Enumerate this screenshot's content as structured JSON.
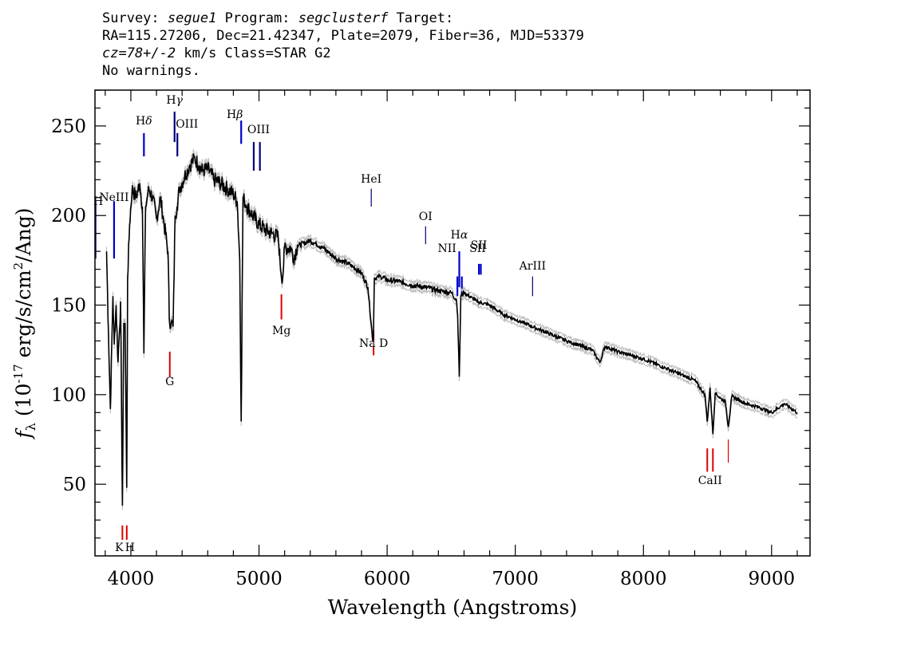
{
  "header": {
    "survey_label": "Survey:",
    "survey_value": "segue1",
    "program_label": "Program:",
    "program_value": "segclusterf",
    "target_label": "Target:",
    "line2": "RA=115.27206, Dec=21.42347, Plate=2079, Fiber=36, MJD=53379",
    "cz_value": "cz=78+/-2",
    "cz_rest": " km/s Class=STAR G2",
    "line4": "No warnings."
  },
  "chart_data": {
    "type": "line",
    "xlabel": "Wavelength (Angstroms)",
    "ylabel": "fλ (10^-17 erg/s/cm^2/Ang)",
    "xlim": [
      3720,
      9300
    ],
    "ylim": [
      10,
      270
    ],
    "x_ticks": [
      4000,
      5000,
      6000,
      7000,
      8000,
      9000
    ],
    "y_ticks": [
      50,
      100,
      150,
      200,
      250
    ],
    "grid": false,
    "series": [
      {
        "color": "#000000",
        "x": [
          3810,
          3825,
          3840,
          3860,
          3870,
          3885,
          3900,
          3920,
          3934,
          3945,
          3955,
          3968,
          3975,
          3990,
          4010,
          4040,
          4070,
          4090,
          4102,
          4115,
          4140,
          4170,
          4200,
          4230,
          4260,
          4290,
          4300,
          4315,
          4330,
          4345,
          4360,
          4380,
          4420,
          4460,
          4500,
          4530,
          4560,
          4600,
          4650,
          4700,
          4750,
          4800,
          4830,
          4850,
          4861,
          4875,
          4900,
          4950,
          5000,
          5050,
          5100,
          5150,
          5172,
          5185,
          5200,
          5250,
          5270,
          5300,
          5400,
          5500,
          5600,
          5700,
          5800,
          5850,
          5885,
          5892,
          5900,
          5950,
          6000,
          6100,
          6200,
          6300,
          6400,
          6500,
          6540,
          6550,
          6563,
          6575,
          6600,
          6700,
          6800,
          6900,
          7000,
          7200,
          7400,
          7600,
          7660,
          7700,
          7800,
          8000,
          8200,
          8400,
          8480,
          8498,
          8520,
          8542,
          8560,
          8600,
          8640,
          8662,
          8690,
          8800,
          8900,
          9000,
          9100,
          9200
        ],
        "y": [
          180,
          135,
          92,
          155,
          128,
          150,
          118,
          152,
          38,
          140,
          140,
          48,
          165,
          195,
          215,
          210,
          218,
          205,
          123,
          205,
          215,
          210,
          198,
          210,
          195,
          180,
          142,
          140,
          138,
          200,
          205,
          215,
          222,
          228,
          232,
          228,
          225,
          226,
          220,
          218,
          215,
          212,
          208,
          175,
          85,
          210,
          206,
          200,
          195,
          192,
          190,
          188,
          168,
          165,
          182,
          182,
          176,
          183,
          186,
          182,
          176,
          173,
          168,
          160,
          132,
          130,
          165,
          166,
          164,
          163,
          161,
          160,
          158,
          157,
          153,
          145,
          110,
          155,
          157,
          152,
          150,
          145,
          142,
          136,
          130,
          125,
          118,
          127,
          124,
          120,
          114,
          108,
          100,
          85,
          104,
          78,
          101,
          98,
          96,
          82,
          99,
          95,
          93,
          90,
          95,
          90
        ]
      }
    ],
    "emission_lines": [
      {
        "label": "H",
        "wavelength": 3727
      },
      {
        "label": "NeIII",
        "wavelength": 3869
      },
      {
        "label": "Hδ",
        "wavelength": 4102
      },
      {
        "label": "Hγ",
        "wavelength": 4341
      },
      {
        "label": "OIII",
        "wavelength": 4363
      },
      {
        "label": "Hβ",
        "wavelength": 4861
      },
      {
        "label": "OIII",
        "wavelength": 4959
      },
      {
        "label": "OIII",
        "wavelength": 5007
      },
      {
        "label": "HeI",
        "wavelength": 5876
      },
      {
        "label": "OI",
        "wavelength": 6300
      },
      {
        "label": "NII",
        "wavelength": 6548
      },
      {
        "label": "Hα",
        "wavelength": 6563
      },
      {
        "label": "NII",
        "wavelength": 6583
      },
      {
        "label": "SII",
        "wavelength": 6716
      },
      {
        "label": "SII",
        "wavelength": 6731
      },
      {
        "label": "ArIII",
        "wavelength": 7135
      }
    ],
    "absorption_lines": [
      {
        "label": "K",
        "wavelength": 3934
      },
      {
        "label": "H",
        "wavelength": 3968
      },
      {
        "label": "G",
        "wavelength": 4304
      },
      {
        "label": "Mg",
        "wavelength": 5175
      },
      {
        "label": "Na D",
        "wavelength": 5894
      },
      {
        "label": "CaII",
        "wavelength": 8498
      },
      {
        "label": "CaII",
        "wavelength": 8542
      },
      {
        "label": "CaII",
        "wavelength": 8662
      }
    ],
    "colors": {
      "spectrum": "#000000",
      "error_band": "#bdbdbd",
      "emission_strong": "#0000cc",
      "emission_weak": "#00007a",
      "absorption": "#dd0000"
    }
  }
}
